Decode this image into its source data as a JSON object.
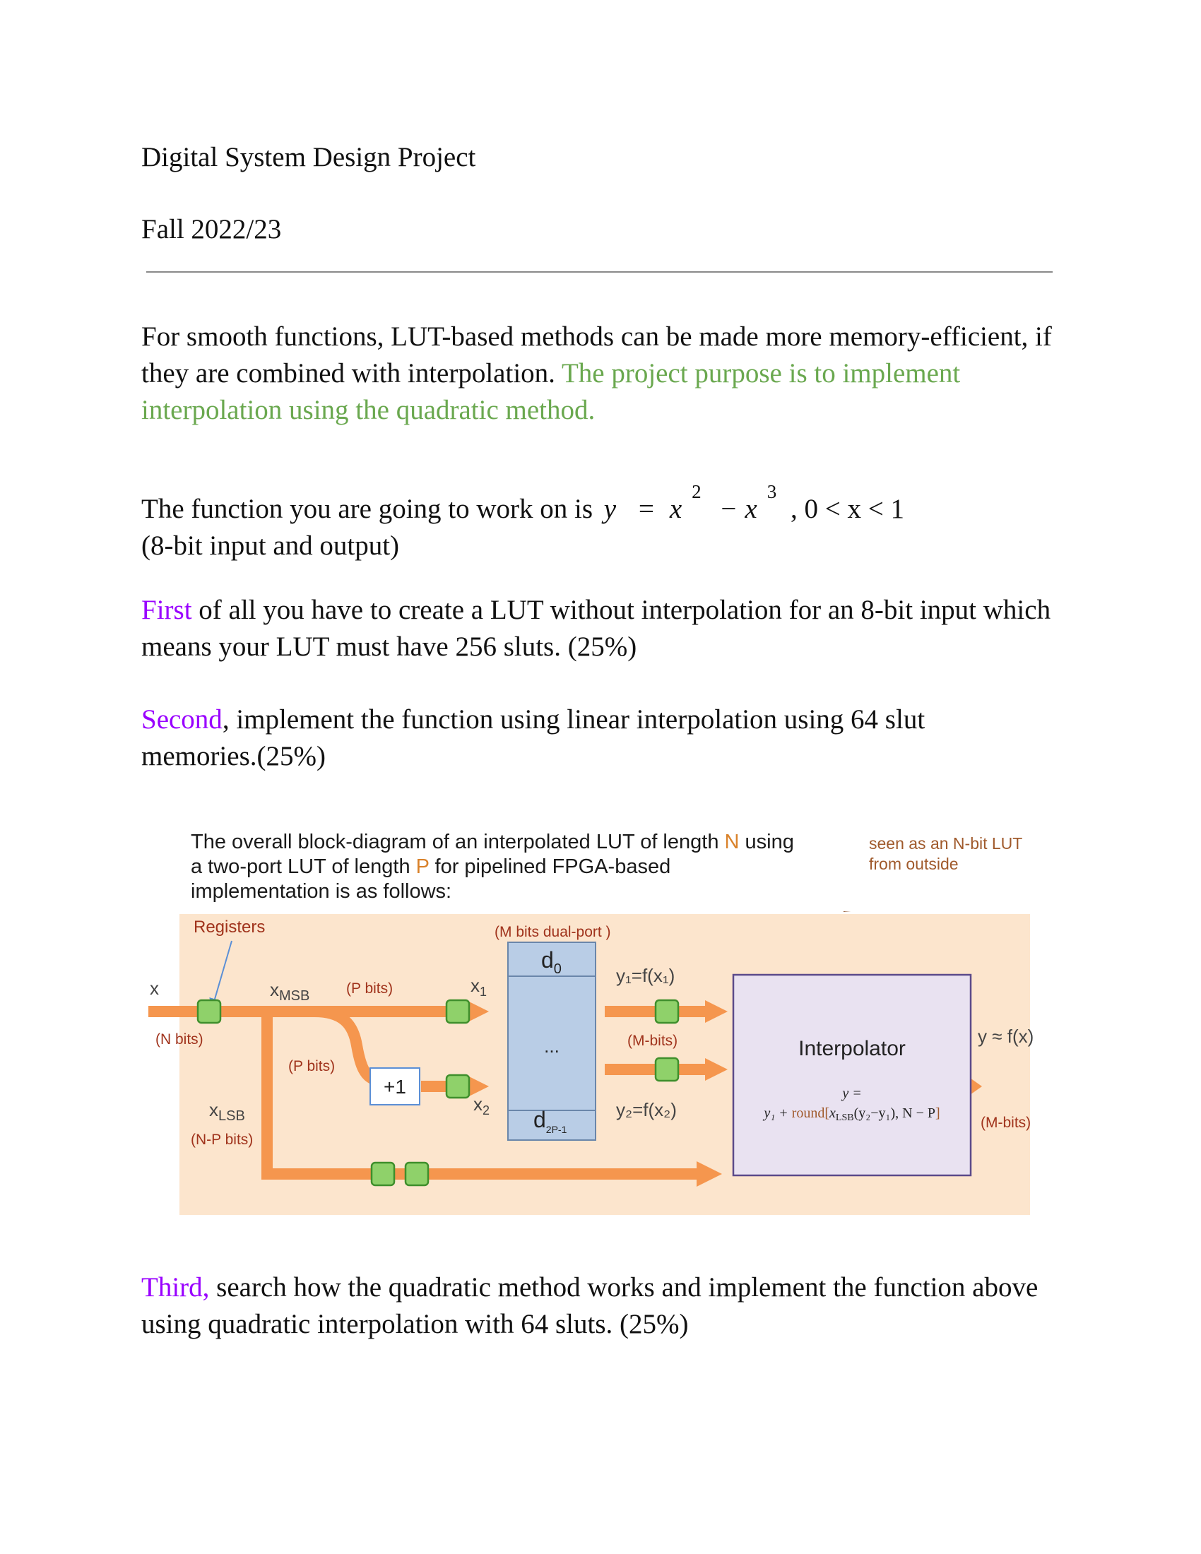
{
  "header": {
    "title": "Digital System Design Project",
    "term": "Fall 2022/23"
  },
  "intro": {
    "line1": "For smooth functions, LUT-based methods can be made more memory-efficient, if",
    "line2_plain": "they are combined with interpolation.",
    "line2_green": "The project purpose is to implement",
    "line3_green": "interpolation using the quadratic method."
  },
  "function": {
    "lead": "The function you are going to work on is",
    "math_y": "y",
    "math_eq": "=",
    "math_x1": "x",
    "exp1": "2",
    "math_minus": "−",
    "math_x2": "x",
    "exp2": "3",
    "domain": ", 0 < x < 1",
    "io": "(8-bit input and output)"
  },
  "tasks": {
    "first_word": "First",
    "first_rest1": "of all you have to create a LUT without interpolation for an 8-bit input which",
    "first_rest2": "means your LUT must have 256 sluts.  (25%)",
    "second_word": "Second",
    "second_rest1": ", implement the function using linear interpolation using 64 slut",
    "second_rest2": "memories.(25%)",
    "third_word": "Third,",
    "third_rest1": " search how the quadratic method works and implement the function above",
    "third_rest2": "using quadratic interpolation with 64 sluts. (25%)"
  },
  "figure": {
    "caption_l1a": "The overall block-diagram of an interpolated LUT of length",
    "caption_n": "N",
    "caption_l1b": "using",
    "caption_l2a": "a two-port LUT of length",
    "caption_p": "P",
    "caption_l2b": "for pipelined FPGA-based",
    "caption_l3": "implementation is as follows:",
    "seen_l1": "seen as an N-bit LUT",
    "seen_l2": "from outside",
    "registers": "Registers",
    "mbits_dual": "(M bits dual-port )",
    "x_in": "x",
    "n_bits": "(N bits)",
    "x_msb_base": "x",
    "x_msb_sub": "MSB",
    "p_bits_top": "(P bits)",
    "p_bits_low": "(P bits)",
    "plus_one": "+1",
    "x1_base": "x",
    "x1_sub": "1",
    "x2_base": "x",
    "x2_sub": "2",
    "x_lsb_base": "x",
    "x_lsb_sub": "LSB",
    "np_bits": "(N-P bits)",
    "d0_base": "d",
    "d0_sub": "0",
    "dots": "...",
    "dlast_base": "d",
    "dlast_sub": "2P-1",
    "y1_label": "y₁=f(x₁)",
    "m_bits_mid": "(M-bits)",
    "y2_label": "y₂=f(x₂)",
    "interpolator": "Interpolator",
    "formula_l1": "y =",
    "formula_l2a": "y₁ + ",
    "formula_l2b": "round[",
    "formula_l2c": "x",
    "formula_l2d": "LSB",
    "formula_l2e": "(y₂−y₁), N − P",
    "formula_l2f": "]",
    "y_out": "y ≈ f(x)",
    "m_bits_out": "(M-bits)",
    "colors": {
      "background": "#fce5cd",
      "bus": "#f5964e",
      "register_fill": "#8fd16a",
      "register_stroke": "#3f8f2c",
      "lut_fill": "#b9cde6",
      "interp_fill": "#e9e2f1",
      "interp_stroke": "#5b4a8a",
      "label_red": "#a0331c"
    }
  }
}
